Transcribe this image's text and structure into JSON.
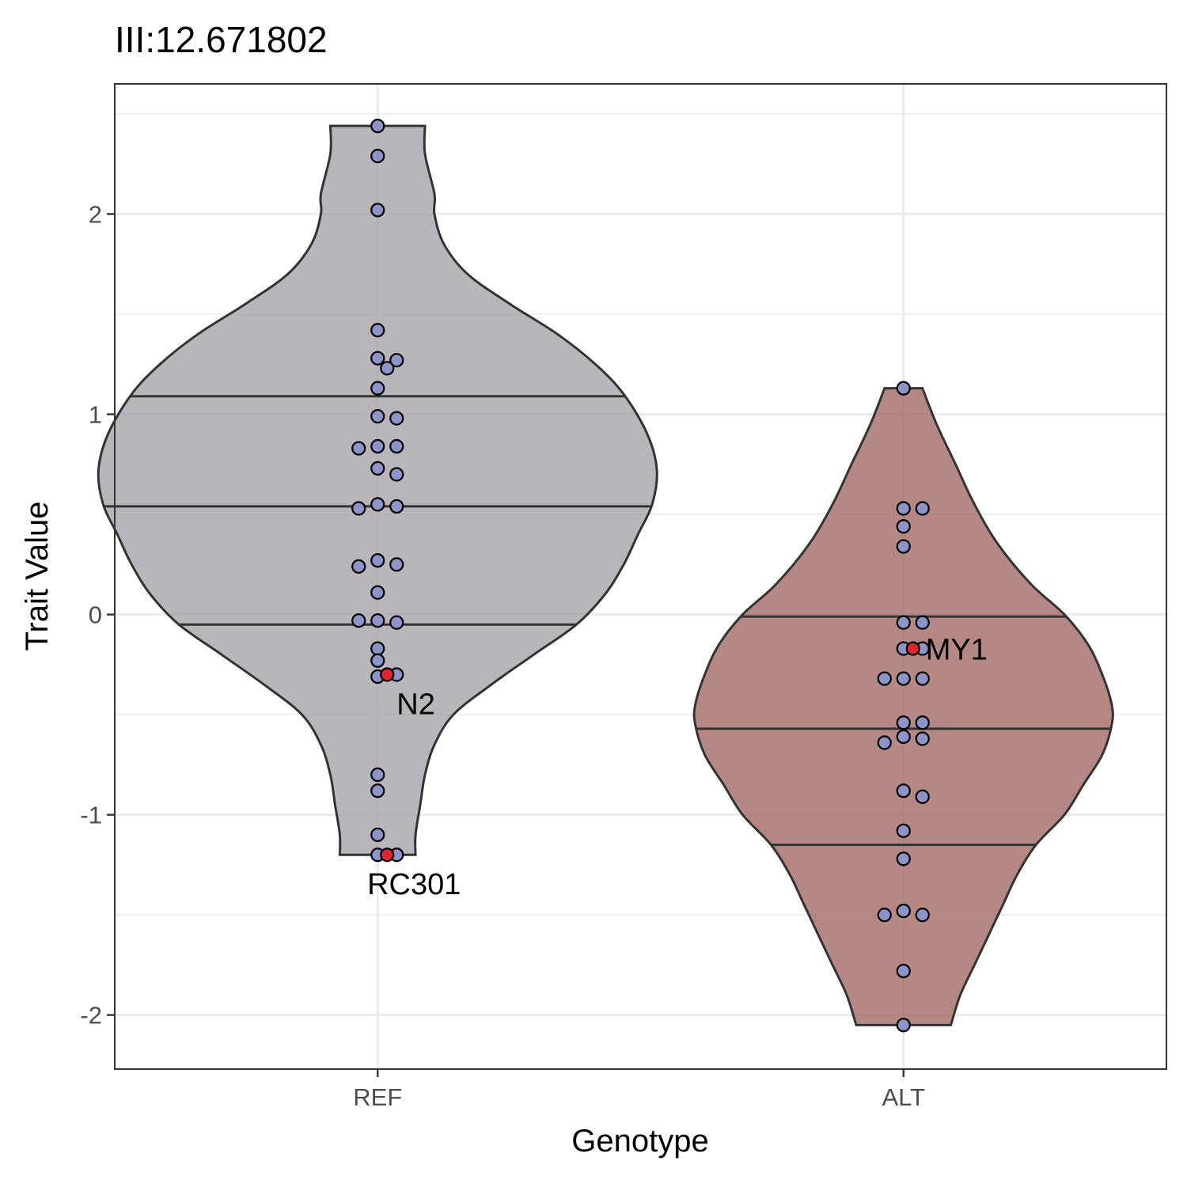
{
  "chart_data": {
    "type": "violin",
    "title": "III:12.671802",
    "xlabel": "Genotype",
    "ylabel": "Trait Value",
    "ylim": [
      -2.27,
      2.65
    ],
    "yticks": [
      2,
      1,
      0,
      -1,
      -2
    ],
    "ytick_labels": [
      "2",
      "1",
      "0",
      "-1",
      "-2"
    ],
    "grid": true,
    "categories": [
      "REF",
      "ALT"
    ],
    "colors": {
      "REF_fill": "#A6A4A9",
      "ALT_fill": "#A46A67",
      "point_fill": "#8C94C9",
      "highlight_fill": "#E0242E"
    },
    "groups": [
      {
        "category": "REF",
        "max": 2.44,
        "min": -1.2,
        "quantiles": [
          1.09,
          0.54,
          -0.05
        ],
        "density": [
          [
            2.44,
            0.1
          ],
          [
            2.3,
            0.1
          ],
          [
            2.1,
            0.12
          ],
          [
            2.0,
            0.12
          ],
          [
            1.85,
            0.14
          ],
          [
            1.7,
            0.19
          ],
          [
            1.55,
            0.28
          ],
          [
            1.4,
            0.38
          ],
          [
            1.25,
            0.46
          ],
          [
            1.1,
            0.52
          ],
          [
            0.9,
            0.57
          ],
          [
            0.72,
            0.59
          ],
          [
            0.55,
            0.58
          ],
          [
            0.4,
            0.55
          ],
          [
            0.25,
            0.52
          ],
          [
            0.1,
            0.48
          ],
          [
            -0.05,
            0.42
          ],
          [
            -0.2,
            0.33
          ],
          [
            -0.35,
            0.24
          ],
          [
            -0.5,
            0.16
          ],
          [
            -0.65,
            0.12
          ],
          [
            -0.8,
            0.1
          ],
          [
            -0.95,
            0.09
          ],
          [
            -1.1,
            0.08
          ],
          [
            -1.2,
            0.08
          ]
        ],
        "points": [
          2.44,
          2.29,
          2.02,
          1.42,
          1.28,
          1.27,
          1.23,
          1.13,
          0.99,
          0.98,
          0.84,
          0.84,
          0.83,
          0.73,
          0.7,
          0.55,
          0.54,
          0.53,
          0.27,
          0.25,
          0.24,
          0.11,
          -0.03,
          -0.04,
          -0.03,
          -0.17,
          -0.23,
          -0.31,
          -0.3,
          -0.8,
          -0.88,
          -1.1,
          -1.2,
          -1.2
        ],
        "highlights": [
          {
            "label": "N2",
            "value": -0.3
          },
          {
            "label": "RC301",
            "value": -1.2
          }
        ]
      },
      {
        "category": "ALT",
        "max": 1.13,
        "min": -2.05,
        "quantiles": [
          -0.01,
          -0.57,
          -1.15
        ],
        "density": [
          [
            1.13,
            0.04
          ],
          [
            0.95,
            0.07
          ],
          [
            0.75,
            0.11
          ],
          [
            0.55,
            0.15
          ],
          [
            0.35,
            0.2
          ],
          [
            0.15,
            0.27
          ],
          [
            0.0,
            0.34
          ],
          [
            -0.15,
            0.39
          ],
          [
            -0.3,
            0.42
          ],
          [
            -0.45,
            0.44
          ],
          [
            -0.55,
            0.44
          ],
          [
            -0.7,
            0.42
          ],
          [
            -0.85,
            0.38
          ],
          [
            -1.0,
            0.34
          ],
          [
            -1.15,
            0.28
          ],
          [
            -1.3,
            0.24
          ],
          [
            -1.45,
            0.21
          ],
          [
            -1.6,
            0.18
          ],
          [
            -1.75,
            0.15
          ],
          [
            -1.9,
            0.12
          ],
          [
            -2.05,
            0.1
          ]
        ],
        "points": [
          1.13,
          0.53,
          0.53,
          0.44,
          0.34,
          -0.04,
          -0.04,
          -0.17,
          -0.17,
          -0.32,
          -0.32,
          -0.32,
          -0.54,
          -0.54,
          -0.61,
          -0.62,
          -0.64,
          -0.88,
          -0.91,
          -1.08,
          -1.22,
          -1.48,
          -1.5,
          -1.5,
          -1.48,
          -1.78,
          -2.05
        ],
        "highlights": [
          {
            "label": "MY1",
            "value": -0.17
          }
        ]
      }
    ]
  }
}
